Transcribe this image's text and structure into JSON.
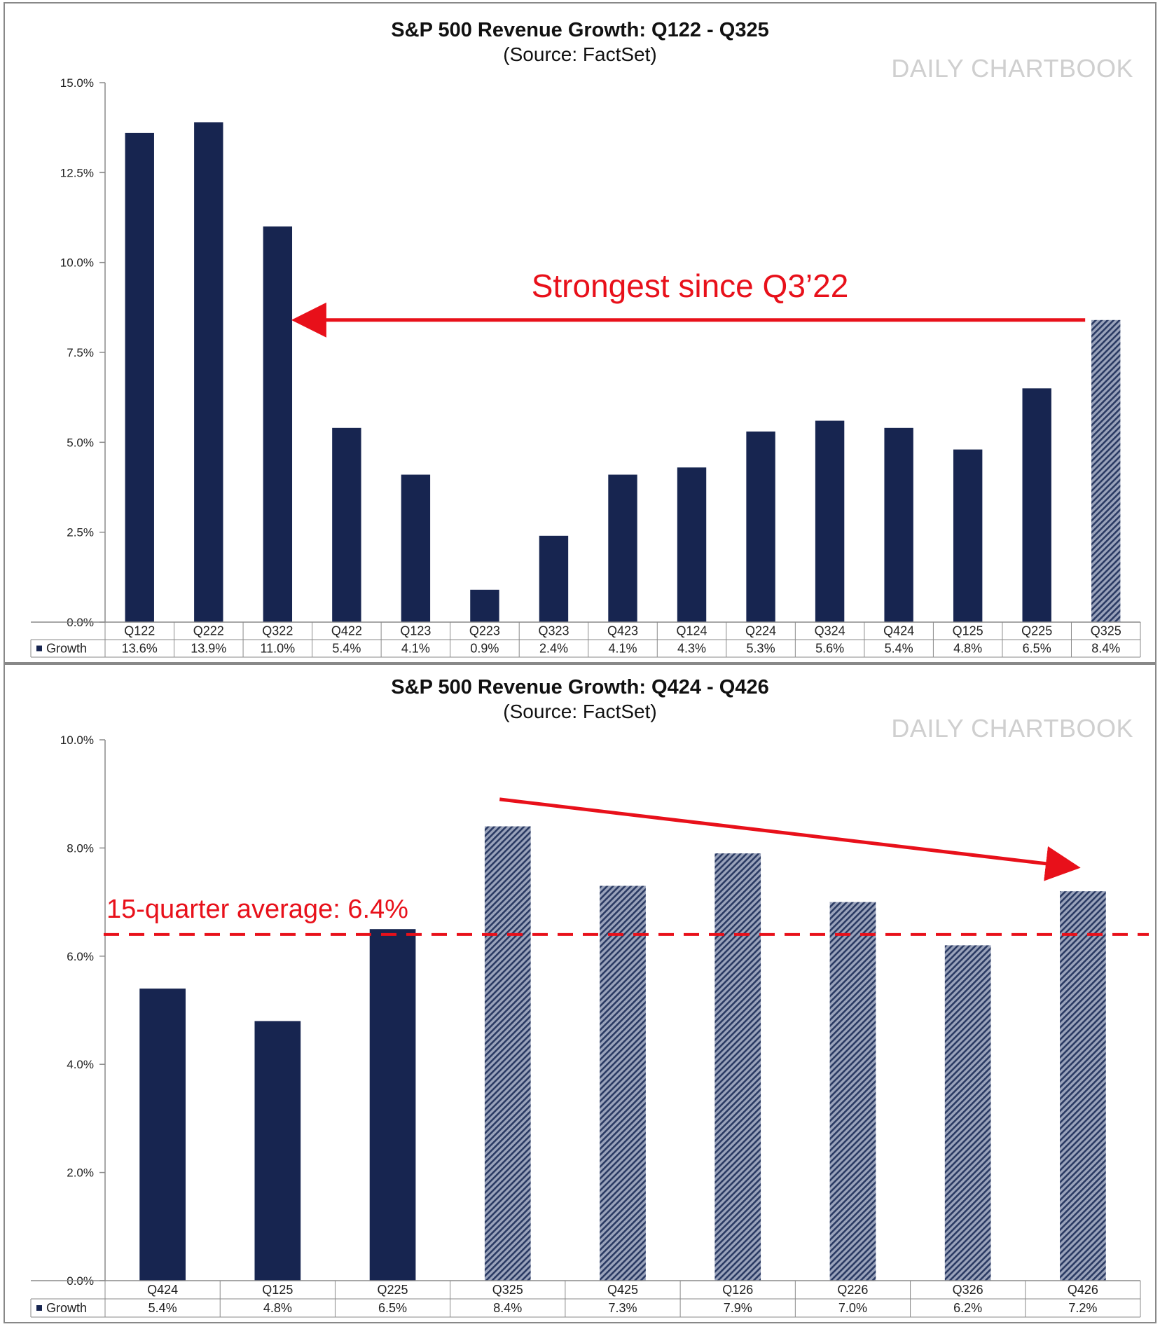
{
  "colors": {
    "actual": "#172550",
    "estimate": "#9aa3bb",
    "estimate_stripe": "#2a3a63",
    "annotation": "#e8101a",
    "grid_line": "#8a8a8a",
    "watermark": "#cfcfcf"
  },
  "watermark": "DAILY CHARTBOOK",
  "chart_data": [
    {
      "type": "bar",
      "title": "S&P 500 Revenue Growth: Q122 - Q325",
      "subtitle": "(Source: FactSet)",
      "series_label": "Growth",
      "categories": [
        "Q122",
        "Q222",
        "Q322",
        "Q422",
        "Q123",
        "Q223",
        "Q323",
        "Q423",
        "Q124",
        "Q224",
        "Q324",
        "Q424",
        "Q125",
        "Q225",
        "Q325"
      ],
      "values": [
        13.6,
        13.9,
        11.0,
        5.4,
        4.1,
        0.9,
        2.4,
        4.1,
        4.3,
        5.3,
        5.6,
        5.4,
        4.8,
        6.5,
        8.4
      ],
      "value_labels": [
        "13.6%",
        "13.9%",
        "11.0%",
        "5.4%",
        "4.1%",
        "0.9%",
        "2.4%",
        "4.1%",
        "4.3%",
        "5.3%",
        "5.6%",
        "5.4%",
        "4.8%",
        "6.5%",
        "8.4%"
      ],
      "estimate": [
        false,
        false,
        false,
        false,
        false,
        false,
        false,
        false,
        false,
        false,
        false,
        false,
        false,
        false,
        true
      ],
      "ylim": [
        0,
        15
      ],
      "yticks": [
        0,
        2.5,
        5,
        7.5,
        10,
        12.5,
        15
      ],
      "ytick_labels": [
        "0.0%",
        "2.5%",
        "5.0%",
        "7.5%",
        "10.0%",
        "12.5%",
        "15.0%"
      ],
      "annotation": {
        "text": "Strongest since Q3’22",
        "arrow_from_category": "Q325",
        "arrow_to_category": "Q322",
        "arrow_value": 8.4
      }
    },
    {
      "type": "bar",
      "title": "S&P 500 Revenue Growth: Q424 - Q426",
      "subtitle": "(Source: FactSet)",
      "series_label": "Growth",
      "categories": [
        "Q424",
        "Q125",
        "Q225",
        "Q325",
        "Q425",
        "Q126",
        "Q226",
        "Q326",
        "Q426"
      ],
      "values": [
        5.4,
        4.8,
        6.5,
        8.4,
        7.3,
        7.9,
        7.0,
        6.2,
        7.2
      ],
      "value_labels": [
        "5.4%",
        "4.8%",
        "6.5%",
        "8.4%",
        "7.3%",
        "7.9%",
        "7.0%",
        "6.2%",
        "7.2%"
      ],
      "estimate": [
        false,
        false,
        false,
        true,
        true,
        true,
        true,
        true,
        true
      ],
      "ylim": [
        0,
        10
      ],
      "yticks": [
        0,
        2,
        4,
        6,
        8,
        10
      ],
      "ytick_labels": [
        "0.0%",
        "2.0%",
        "4.0%",
        "6.0%",
        "8.0%",
        "10.0%"
      ],
      "average_line": {
        "value": 6.4,
        "label": "15-quarter average: 6.4%"
      },
      "trend_arrow": {
        "from_category": "Q325",
        "from_value": 8.9,
        "to_category": "Q426",
        "to_value": 7.65
      }
    }
  ]
}
